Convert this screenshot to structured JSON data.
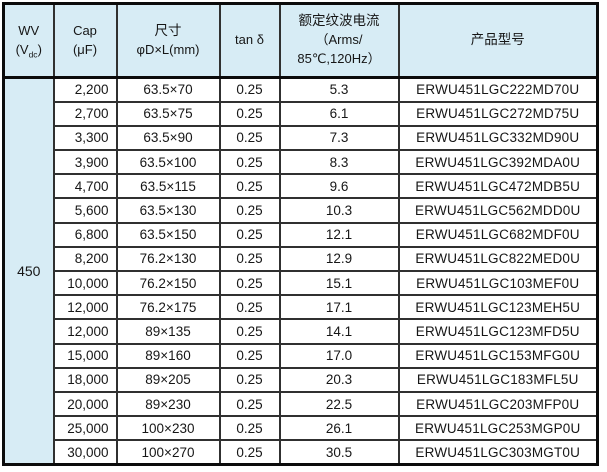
{
  "colors": {
    "header_bg": "#d7ecf5",
    "grid": "#303030",
    "outer": "#0b0b0b",
    "text": "#161616"
  },
  "table": {
    "headers": {
      "wv": {
        "line1": "WV",
        "open": "(V",
        "sub": "dc",
        "close": ")"
      },
      "cap": {
        "line1": "Cap",
        "line2": "(μF)"
      },
      "size": {
        "line1": "尺寸",
        "line2": "φD×L(mm)"
      },
      "tand": "tan δ",
      "ripple": {
        "line1": "额定纹波电流",
        "line2": "（Arms/",
        "line3": "85℃,120Hz）"
      },
      "part": "产品型号"
    },
    "wv_value": "450",
    "rows": [
      {
        "cap": "2,200",
        "size": "63.5×70",
        "tand": "0.25",
        "ripple": "5.3",
        "part": "ERWU451LGC222MD70U"
      },
      {
        "cap": "2,700",
        "size": "63.5×75",
        "tand": "0.25",
        "ripple": "6.1",
        "part": "ERWU451LGC272MD75U"
      },
      {
        "cap": "3,300",
        "size": "63.5×90",
        "tand": "0.25",
        "ripple": "7.3",
        "part": "ERWU451LGC332MD90U"
      },
      {
        "cap": "3,900",
        "size": "63.5×100",
        "tand": "0.25",
        "ripple": "8.3",
        "part": "ERWU451LGC392MDA0U"
      },
      {
        "cap": "4,700",
        "size": "63.5×115",
        "tand": "0.25",
        "ripple": "9.6",
        "part": "ERWU451LGC472MDB5U"
      },
      {
        "cap": "5,600",
        "size": "63.5×130",
        "tand": "0.25",
        "ripple": "10.3",
        "part": "ERWU451LGC562MDD0U"
      },
      {
        "cap": "6,800",
        "size": "63.5×150",
        "tand": "0.25",
        "ripple": "12.1",
        "part": "ERWU451LGC682MDF0U"
      },
      {
        "cap": "8,200",
        "size": "76.2×130",
        "tand": "0.25",
        "ripple": "12.9",
        "part": "ERWU451LGC822MED0U"
      },
      {
        "cap": "10,000",
        "size": "76.2×150",
        "tand": "0.25",
        "ripple": "15.1",
        "part": "ERWU451LGC103MEF0U"
      },
      {
        "cap": "12,000",
        "size": "76.2×175",
        "tand": "0.25",
        "ripple": "17.1",
        "part": "ERWU451LGC123MEH5U"
      },
      {
        "cap": "12,000",
        "size": "89×135",
        "tand": "0.25",
        "ripple": "14.1",
        "part": "ERWU451LGC123MFD5U"
      },
      {
        "cap": "15,000",
        "size": "89×160",
        "tand": "0.25",
        "ripple": "17.0",
        "part": "ERWU451LGC153MFG0U"
      },
      {
        "cap": "18,000",
        "size": "89×205",
        "tand": "0.25",
        "ripple": "20.3",
        "part": "ERWU451LGC183MFL5U"
      },
      {
        "cap": "20,000",
        "size": "89×230",
        "tand": "0.25",
        "ripple": "22.5",
        "part": "ERWU451LGC203MFP0U"
      },
      {
        "cap": "25,000",
        "size": "100×230",
        "tand": "0.25",
        "ripple": "26.1",
        "part": "ERWU451LGC253MGP0U"
      },
      {
        "cap": "30,000",
        "size": "100×270",
        "tand": "0.25",
        "ripple": "30.5",
        "part": "ERWU451LGC303MGT0U"
      }
    ]
  }
}
